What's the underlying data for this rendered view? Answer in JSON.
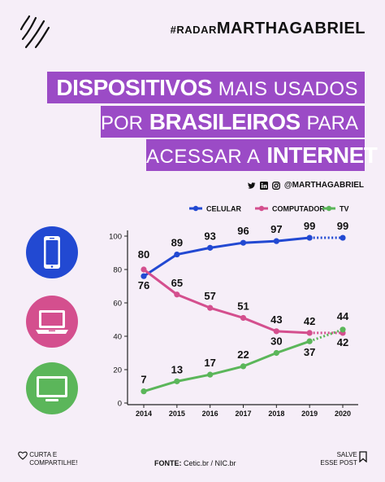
{
  "header": {
    "hashtag_small": "#RADAR",
    "hashtag_big": "MARTHAGABRIEL",
    "handle": "@MARTHAGABRIEL"
  },
  "title": {
    "line1_bold": "DISPOSITIVOS",
    "line1_normal": "MAIS USADOS",
    "line2_normal_a": "POR",
    "line2_bold": "BRASILEIROS",
    "line2_normal_b": "PARA",
    "line3_normal": "ACESSAR A",
    "line3_bold": "INTERNET"
  },
  "colors": {
    "purple": "#9b4bc6",
    "celular": "#2249d2",
    "computador": "#d44f8e",
    "tv": "#5bb65a"
  },
  "icons": {
    "celular": "smartphone-icon",
    "computador": "laptop-icon",
    "tv": "tv-icon"
  },
  "footer": {
    "share": "CURTA E COMPARTILHE!",
    "source_label": "FONTE:",
    "source": "Cetic.br / NIC.br",
    "save": "SALVE ESSE POST"
  },
  "chart_data": {
    "type": "line",
    "categories": [
      "2014",
      "2015",
      "2016",
      "2017",
      "2018",
      "2019",
      "2020"
    ],
    "ylim": [
      0,
      100
    ],
    "yticks": [
      0,
      20,
      40,
      60,
      80,
      100
    ],
    "legend_position": "top-right",
    "grid": false,
    "projected_last_segment": true,
    "series": [
      {
        "name": "CELULAR",
        "color": "#2249d2",
        "values": [
          76,
          89,
          93,
          96,
          97,
          99,
          99
        ]
      },
      {
        "name": "COMPUTADOR",
        "color": "#d44f8e",
        "values": [
          80,
          65,
          57,
          51,
          43,
          42,
          42
        ]
      },
      {
        "name": "TV",
        "color": "#5bb65a",
        "values": [
          7,
          13,
          17,
          22,
          30,
          37,
          44
        ]
      }
    ]
  }
}
